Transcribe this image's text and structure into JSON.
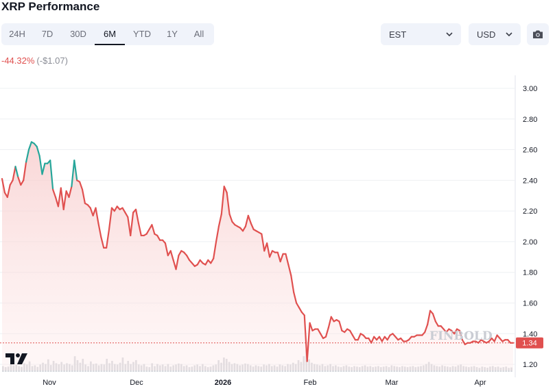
{
  "header": {
    "title": "XRP Performance",
    "change_pct": "-44.32%",
    "change_abs": "(-$1.07)"
  },
  "range_tabs": [
    {
      "label": "24H",
      "active": false
    },
    {
      "label": "7D",
      "active": false
    },
    {
      "label": "30D",
      "active": false
    },
    {
      "label": "6M",
      "active": true
    },
    {
      "label": "YTD",
      "active": false
    },
    {
      "label": "1Y",
      "active": false
    },
    {
      "label": "All",
      "active": false
    }
  ],
  "timezone_select": {
    "value": "EST",
    "icon": "chevron-down-icon"
  },
  "currency_select": {
    "value": "USD",
    "icon": "chevron-down-icon"
  },
  "screenshot_button": {
    "icon": "camera-icon"
  },
  "watermark": "FINBOLD",
  "colors": {
    "line_down": "#e0504f",
    "line_up": "#26a69a",
    "area_fill": "#f7c9c9",
    "price_label_bg": "#e0504f",
    "volume": "#d5d7dc"
  },
  "chart_data": {
    "type": "line",
    "title": "XRP Performance",
    "xlabel": "",
    "ylabel": "",
    "ylim": [
      1.12,
      3.04
    ],
    "yticks": [
      3.0,
      2.8,
      2.6,
      2.4,
      2.2,
      2.0,
      1.8,
      1.6,
      1.4,
      1.2
    ],
    "x_tick_labels": [
      "Nov",
      "Dec",
      "2026",
      "Feb",
      "Mar",
      "Apr"
    ],
    "grid": true,
    "last_price": 1.34,
    "last_price_label": "1.34",
    "series": [
      {
        "values": [
          2.41,
          2.32,
          2.29,
          2.37,
          2.4,
          2.49,
          2.42,
          2.37,
          2.4,
          2.52,
          2.6,
          2.65,
          2.64,
          2.62,
          2.56,
          2.44,
          2.51,
          2.51,
          2.53,
          2.34,
          2.29,
          2.23,
          2.35,
          2.21,
          2.33,
          2.29,
          2.36,
          2.53,
          2.4,
          2.39,
          2.34,
          2.25,
          2.24,
          2.22,
          2.17,
          2.22,
          2.12,
          2.03,
          1.96,
          1.96,
          2.08,
          2.22,
          2.2,
          2.23,
          2.21,
          2.22,
          2.19,
          2.16,
          2.04,
          2.19,
          2.21,
          2.12,
          2.04,
          2.04,
          2.05,
          2.08,
          2.11,
          2.05,
          2.04,
          2.01,
          2.01,
          1.99,
          1.91,
          1.94,
          1.88,
          1.82,
          1.91,
          1.94,
          1.93,
          1.91,
          1.88,
          1.86,
          1.84,
          1.85,
          1.88,
          1.86,
          1.85,
          1.88,
          1.86,
          1.89,
          2.0,
          2.1,
          2.18,
          2.36,
          2.32,
          2.18,
          2.13,
          2.11,
          2.1,
          2.09,
          2.07,
          2.1,
          2.17,
          2.12,
          2.08,
          2.07,
          2.06,
          2.05,
          1.94,
          1.99,
          1.9,
          1.94,
          1.93,
          1.93,
          1.87,
          1.92,
          1.92,
          1.85,
          1.78,
          1.67,
          1.6,
          1.57,
          1.54,
          1.52,
          1.22,
          1.47,
          1.42,
          1.43,
          1.43,
          1.4,
          1.37,
          1.38,
          1.44,
          1.51,
          1.48,
          1.49,
          1.48,
          1.42,
          1.41,
          1.43,
          1.42,
          1.39,
          1.36,
          1.36,
          1.4,
          1.39,
          1.37,
          1.37,
          1.34,
          1.38,
          1.36,
          1.38,
          1.35,
          1.38,
          1.36,
          1.39,
          1.4,
          1.38,
          1.36,
          1.37,
          1.35,
          1.35,
          1.36,
          1.38,
          1.38,
          1.39,
          1.39,
          1.39,
          1.41,
          1.46,
          1.55,
          1.53,
          1.48,
          1.45,
          1.45,
          1.43,
          1.41,
          1.43,
          1.42,
          1.4,
          1.43,
          1.42,
          1.36,
          1.33,
          1.34,
          1.34,
          1.35,
          1.35,
          1.34,
          1.36,
          1.35,
          1.34,
          1.35,
          1.37,
          1.35,
          1.39,
          1.37,
          1.35,
          1.36,
          1.36,
          1.34,
          1.34
        ]
      }
    ],
    "volume": [
      0.22,
      0.18,
      0.2,
      0.3,
      0.25,
      0.27,
      0.22,
      0.19,
      0.33,
      0.28,
      0.4,
      0.22,
      0.25,
      0.19,
      0.28,
      0.35,
      0.3,
      0.48,
      0.26,
      0.42,
      0.33,
      0.29,
      0.38,
      0.28,
      0.33,
      0.3,
      0.25,
      0.6,
      0.45,
      0.35,
      0.5,
      0.28,
      0.22,
      0.4,
      0.3,
      0.32,
      0.25,
      0.3,
      0.28,
      0.5,
      0.33,
      0.42,
      0.3,
      0.28,
      0.35,
      0.55,
      0.3,
      0.42,
      0.3,
      0.38,
      0.45,
      0.28,
      0.25,
      0.3,
      0.2,
      0.18,
      0.33,
      0.22,
      0.3,
      0.25,
      0.28,
      0.22,
      0.3,
      0.2,
      0.25,
      0.28,
      0.32,
      0.3,
      0.22,
      0.25,
      0.18,
      0.2,
      0.25,
      0.28,
      0.22,
      0.3,
      0.22,
      0.18,
      0.2,
      0.25,
      0.28,
      0.45,
      0.35,
      0.55,
      0.5,
      0.38,
      0.3,
      0.33,
      0.3,
      0.25,
      0.28,
      0.32,
      0.3,
      0.25,
      0.2,
      0.25,
      0.22,
      0.2,
      0.28,
      0.25,
      0.3,
      0.22,
      0.25,
      0.2,
      0.28,
      0.25,
      0.22,
      0.3,
      0.28,
      0.35,
      0.3,
      0.45,
      0.38,
      0.6,
      0.85,
      0.48,
      0.35,
      0.3,
      0.28,
      0.25,
      0.3,
      0.22,
      0.25,
      0.3,
      0.22,
      0.25,
      0.2,
      0.18,
      0.22,
      0.25,
      0.2,
      0.18,
      0.22,
      0.2,
      0.18,
      0.22,
      0.25,
      0.2,
      0.22,
      0.18,
      0.2,
      0.22,
      0.18,
      0.2,
      0.22,
      0.18,
      0.25,
      0.22,
      0.2,
      0.18,
      0.22,
      0.2,
      0.18,
      0.2,
      0.22,
      0.18,
      0.2,
      0.22,
      0.25,
      0.3,
      0.38,
      0.3,
      0.25,
      0.22,
      0.2,
      0.25,
      0.22,
      0.2,
      0.18,
      0.22,
      0.2,
      0.25,
      0.28,
      0.22,
      0.2,
      0.18,
      0.2,
      0.22,
      0.18,
      0.15,
      0.2,
      0.18,
      0.16,
      0.2,
      0.22,
      0.18,
      0.2,
      0.16,
      0.18,
      0.2,
      0.15,
      0.17
    ]
  }
}
